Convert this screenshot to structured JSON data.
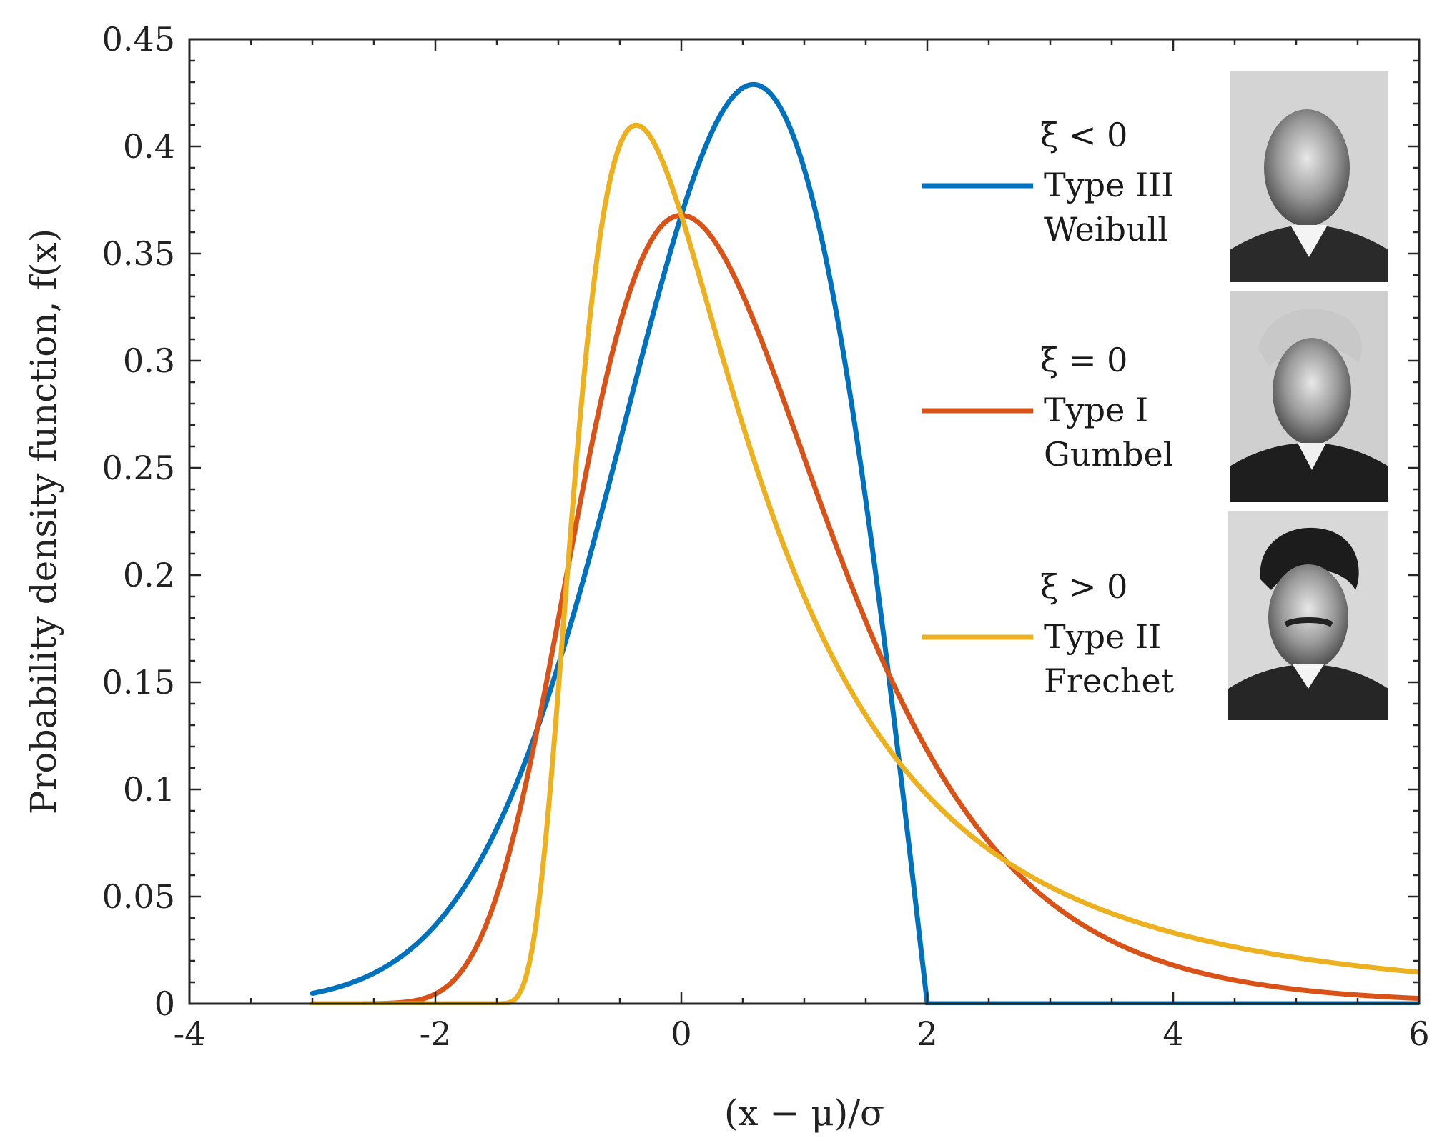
{
  "chart_data": {
    "type": "line",
    "title": "",
    "xlabel": "(x − μ)/σ",
    "ylabel": "Probability density function, f(x)",
    "xlim": [
      -4,
      6
    ],
    "ylim": [
      0,
      0.45
    ],
    "xticks": [
      -4,
      -2,
      0,
      2,
      4,
      6
    ],
    "xtick_labels": [
      "-4",
      "-2",
      "0",
      "2",
      "4",
      "6"
    ],
    "yticks": [
      0,
      0.05,
      0.1,
      0.15,
      0.2,
      0.25,
      0.3,
      0.35,
      0.4,
      0.45
    ],
    "ytick_labels": [
      "0",
      "0.05",
      "0.1",
      "0.15",
      "0.2",
      "0.25",
      "0.3",
      "0.35",
      "0.4",
      "0.45"
    ],
    "grid": false,
    "legend_position": "top-right",
    "series": [
      {
        "name": "Type III Weibull",
        "condition": "ξ < 0",
        "line1": "Type III",
        "line2": "Weibull",
        "shape_xi": -0.5,
        "color": "#0072BD",
        "x_range": [
          -3,
          6
        ],
        "x": [
          -3,
          -2.5,
          -2,
          -1.5,
          -1,
          -0.5,
          0,
          0.5,
          0.58,
          1,
          1.5,
          1.8,
          2,
          2.5,
          6
        ],
        "values": [
          0.005,
          0.015,
          0.041,
          0.085,
          0.152,
          0.255,
          0.368,
          0.428,
          0.429,
          0.4,
          0.243,
          0.094,
          0,
          0,
          0
        ]
      },
      {
        "name": "Type I Gumbel",
        "condition": "ξ = 0",
        "line1": "Type I",
        "line2": "Gumbel",
        "shape_xi": 0,
        "color": "#D95319",
        "x_range": [
          -3,
          6
        ],
        "x": [
          -3,
          -2,
          -1.5,
          -1,
          -0.5,
          0,
          0.5,
          1,
          1.5,
          2,
          3,
          4,
          5,
          6
        ],
        "values": [
          0,
          0.005,
          0.051,
          0.179,
          0.323,
          0.368,
          0.331,
          0.255,
          0.18,
          0.118,
          0.047,
          0.018,
          0.007,
          0.002
        ]
      },
      {
        "name": "Type II Frechet",
        "condition": "ξ > 0",
        "line1": "Type II",
        "line2": "Frechet",
        "shape_xi": 0.5,
        "color": "#EDB120",
        "x_range": [
          -3,
          6
        ],
        "x": [
          -3,
          -1.5,
          -1,
          -0.5,
          -0.36,
          0,
          0.5,
          1,
          2,
          3,
          4,
          5,
          6
        ],
        "values": [
          0,
          0.001,
          0.165,
          0.401,
          0.41,
          0.368,
          0.262,
          0.177,
          0.087,
          0.049,
          0.031,
          0.021,
          0.015
        ]
      }
    ],
    "portraits": [
      {
        "name": "Weibull portrait"
      },
      {
        "name": "Gumbel portrait"
      },
      {
        "name": "Frechet portrait"
      }
    ]
  }
}
